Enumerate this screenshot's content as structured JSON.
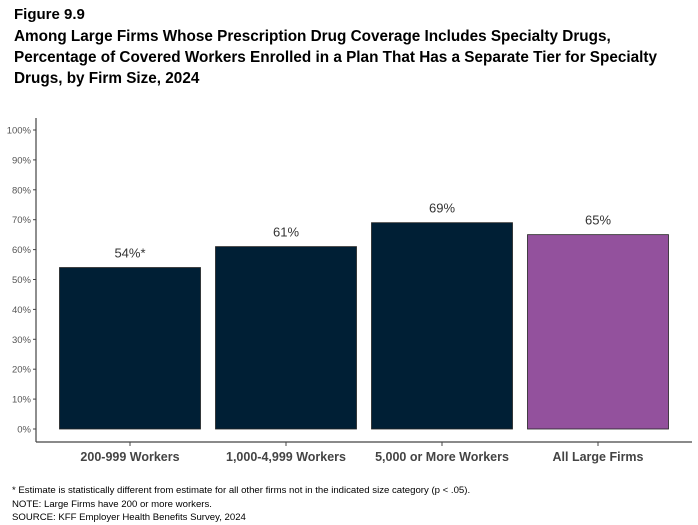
{
  "figure_label": "Figure 9.9",
  "title": "Among Large Firms Whose Prescription Drug Coverage Includes Specialty Drugs, Percentage of Covered Workers Enrolled in a Plan That Has a Separate Tier for Specialty Drugs, by Firm Size, 2024",
  "notes": [
    "* Estimate is statistically different from estimate for all other firms not in the indicated size category (p < .05).",
    "NOTE: Large Firms have 200 or more workers.",
    "SOURCE: KFF Employer Health Benefits Survey, 2024"
  ],
  "chart_data": {
    "type": "bar",
    "categories": [
      "200-999 Workers",
      "1,000-4,999 Workers",
      "5,000 or More Workers",
      "All Large Firms"
    ],
    "values": [
      54,
      61,
      69,
      65
    ],
    "data_labels": [
      "54%*",
      "61%",
      "69%",
      "65%"
    ],
    "colors": [
      "#001f35",
      "#001f35",
      "#001f35",
      "#93519d"
    ],
    "ylim": [
      0,
      100
    ],
    "yticks": [
      0,
      10,
      20,
      30,
      40,
      50,
      60,
      70,
      80,
      90,
      100
    ],
    "ytick_labels": [
      "0%",
      "10%",
      "20%",
      "30%",
      "40%",
      "50%",
      "60%",
      "70%",
      "80%",
      "90%",
      "100%"
    ],
    "grid": false,
    "xlabel": "",
    "ylabel": ""
  }
}
